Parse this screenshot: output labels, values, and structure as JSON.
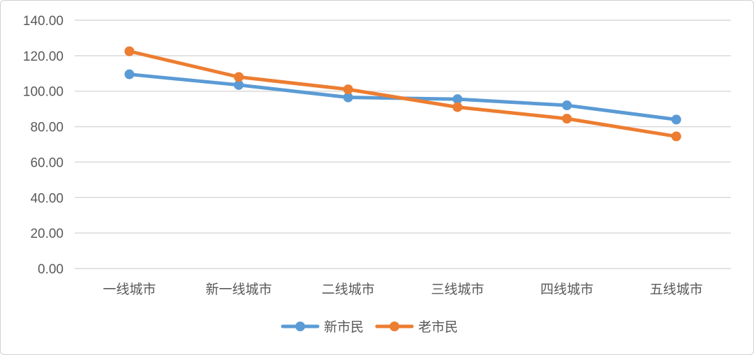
{
  "chart_data": {
    "type": "line",
    "categories": [
      "一线城市",
      "新一线城市",
      "二线城市",
      "三线城市",
      "四线城市",
      "五线城市"
    ],
    "series": [
      {
        "name": "新市民",
        "color": "#5b9bd5",
        "values": [
          109.5,
          103.5,
          96.5,
          95.5,
          92.0,
          84.0
        ]
      },
      {
        "name": "老市民",
        "color": "#ed7d31",
        "values": [
          122.5,
          108.0,
          101.0,
          91.0,
          84.5,
          74.5
        ]
      }
    ],
    "y_ticks": [
      "0.00",
      "20.00",
      "40.00",
      "60.00",
      "80.00",
      "100.00",
      "120.00",
      "140.00"
    ],
    "ylim": [
      0,
      140
    ],
    "grid": true,
    "legend_position": "bottom",
    "title": "",
    "xlabel": "",
    "ylabel": ""
  }
}
